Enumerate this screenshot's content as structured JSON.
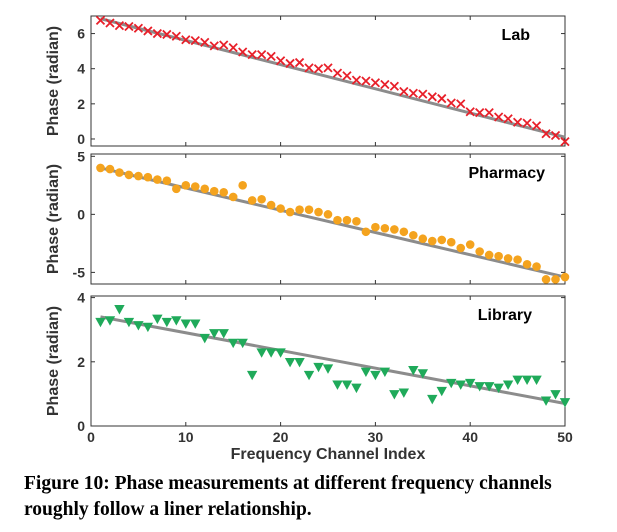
{
  "caption": "Figure 10: Phase measurements at different frequency channels roughly follow a liner relationship.",
  "chart_data": [
    {
      "type": "scatter",
      "title": "Lab",
      "xlabel": "",
      "ylabel": "Phase (radian)",
      "xlim": [
        0,
        50
      ],
      "ylim": [
        -0.4,
        7.0
      ],
      "xticks": [
        0,
        10,
        20,
        30,
        40,
        50
      ],
      "yticks": [
        0,
        2,
        4,
        6
      ],
      "xtick_labels": [
        "",
        "",
        "",
        "",
        "",
        ""
      ],
      "ytick_labels": [
        "0",
        "2",
        "4",
        "6"
      ],
      "marker": "x",
      "color": "#e8202a",
      "fit_color": "#8c8c8c",
      "fit": {
        "x": [
          1,
          50
        ],
        "y": [
          6.85,
          0.1
        ]
      },
      "series": [
        {
          "x": [
            1,
            2,
            3,
            4,
            5,
            6,
            7,
            8,
            9,
            10,
            11,
            12,
            13,
            14,
            15,
            16,
            17,
            18,
            19,
            20,
            21,
            22,
            23,
            24,
            25,
            26,
            27,
            28,
            29,
            30,
            31,
            32,
            33,
            34,
            35,
            36,
            37,
            38,
            39,
            40,
            41,
            42,
            43,
            44,
            45,
            46,
            47,
            48,
            49,
            50
          ],
          "y": [
            6.75,
            6.6,
            6.45,
            6.4,
            6.3,
            6.15,
            6.0,
            5.95,
            5.85,
            5.65,
            5.6,
            5.5,
            5.3,
            5.35,
            5.2,
            4.95,
            4.8,
            4.8,
            4.7,
            4.45,
            4.3,
            4.35,
            4.05,
            4.0,
            4.05,
            3.75,
            3.6,
            3.35,
            3.3,
            3.2,
            3.1,
            3.0,
            2.7,
            2.6,
            2.55,
            2.4,
            2.3,
            2.05,
            2.0,
            1.55,
            1.5,
            1.5,
            1.25,
            1.15,
            0.95,
            0.9,
            0.75,
            0.3,
            0.2,
            -0.15
          ]
        }
      ]
    },
    {
      "type": "scatter",
      "title": "Pharmacy",
      "xlabel": "",
      "ylabel": "Phase (radian)",
      "xlim": [
        0,
        50
      ],
      "ylim": [
        -6.0,
        5.2
      ],
      "xticks": [
        0,
        10,
        20,
        30,
        40,
        50
      ],
      "yticks": [
        -5,
        0,
        5
      ],
      "xtick_labels": [
        "",
        "",
        "",
        "",
        "",
        ""
      ],
      "ytick_labels": [
        "-5",
        "0",
        "5"
      ],
      "marker": "circle",
      "color": "#f4a31e",
      "fit_color": "#8c8c8c",
      "fit": {
        "x": [
          1,
          50
        ],
        "y": [
          4.0,
          -5.4
        ]
      },
      "series": [
        {
          "x": [
            1,
            2,
            3,
            4,
            5,
            6,
            7,
            8,
            9,
            10,
            11,
            12,
            13,
            14,
            15,
            16,
            17,
            18,
            19,
            20,
            21,
            22,
            23,
            24,
            25,
            26,
            27,
            28,
            29,
            30,
            31,
            32,
            33,
            34,
            35,
            36,
            37,
            38,
            39,
            40,
            41,
            42,
            43,
            44,
            45,
            46,
            47,
            48,
            49,
            50
          ],
          "y": [
            4.0,
            3.9,
            3.6,
            3.4,
            3.3,
            3.2,
            3.0,
            2.9,
            2.2,
            2.5,
            2.4,
            2.2,
            2.0,
            1.9,
            1.5,
            2.5,
            1.2,
            1.3,
            0.8,
            0.5,
            0.2,
            0.4,
            0.4,
            0.2,
            0.0,
            -0.5,
            -0.5,
            -0.6,
            -1.5,
            -1.1,
            -1.2,
            -1.3,
            -1.5,
            -1.8,
            -2.1,
            -2.3,
            -2.2,
            -2.4,
            -2.9,
            -2.6,
            -3.2,
            -3.5,
            -3.6,
            -3.8,
            -3.9,
            -4.3,
            -4.5,
            -5.6,
            -5.6,
            -5.4
          ]
        }
      ]
    },
    {
      "type": "scatter",
      "title": "Library",
      "xlabel": "Frequency Channel Index",
      "ylabel": "Phase (radian)",
      "xlim": [
        0,
        50
      ],
      "ylim": [
        0,
        4.05
      ],
      "xticks": [
        0,
        10,
        20,
        30,
        40,
        50
      ],
      "yticks": [
        0,
        2,
        4
      ],
      "xtick_labels": [
        "0",
        "10",
        "20",
        "30",
        "40",
        "50"
      ],
      "ytick_labels": [
        "0",
        "2",
        "4"
      ],
      "marker": "triangle-down",
      "color": "#1faa5a",
      "fit_color": "#8c8c8c",
      "fit": {
        "x": [
          1,
          50
        ],
        "y": [
          3.4,
          0.7
        ]
      },
      "series": [
        {
          "x": [
            1,
            2,
            3,
            4,
            5,
            6,
            7,
            8,
            9,
            10,
            11,
            12,
            13,
            14,
            15,
            16,
            17,
            18,
            19,
            20,
            21,
            22,
            23,
            24,
            25,
            26,
            27,
            28,
            29,
            30,
            31,
            32,
            33,
            34,
            35,
            36,
            37,
            38,
            39,
            40,
            41,
            42,
            43,
            44,
            45,
            46,
            47,
            48,
            49,
            50
          ],
          "y": [
            3.25,
            3.3,
            3.65,
            3.25,
            3.15,
            3.1,
            3.35,
            3.25,
            3.3,
            3.2,
            3.2,
            2.75,
            2.9,
            2.9,
            2.6,
            2.6,
            1.6,
            2.3,
            2.3,
            2.3,
            2.0,
            2.0,
            1.6,
            1.85,
            1.8,
            1.3,
            1.3,
            1.2,
            1.7,
            1.6,
            1.7,
            1.0,
            1.05,
            1.75,
            1.65,
            0.85,
            1.1,
            1.35,
            1.3,
            1.35,
            1.25,
            1.25,
            1.2,
            1.3,
            1.45,
            1.45,
            1.45,
            0.8,
            1.0,
            0.75
          ]
        }
      ]
    }
  ]
}
